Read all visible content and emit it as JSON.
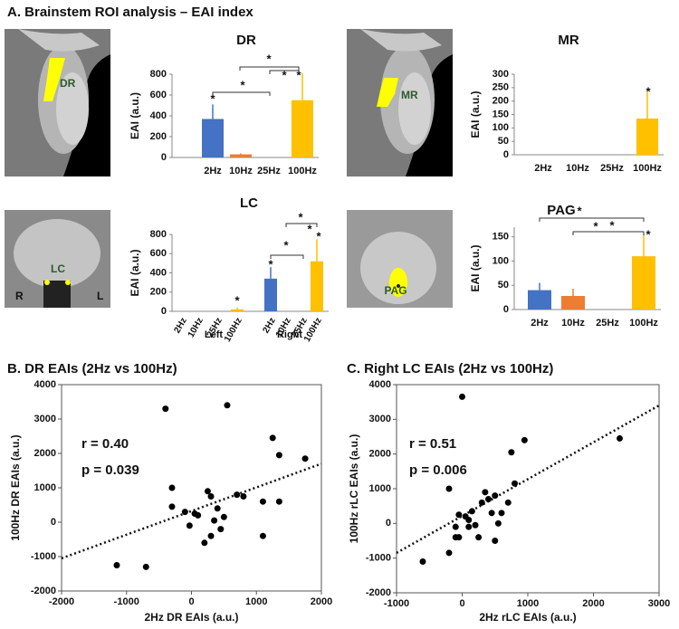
{
  "figure": {
    "panel_a_title": "A. Brainstem ROI analysis – EAI index",
    "image_labels": {
      "dr": "DR",
      "mr": "MR",
      "lc": "LC",
      "lc_right": "R",
      "lc_left": "L",
      "pag": "PAG"
    }
  },
  "chart_data": [
    {
      "type": "bar",
      "title": "DR",
      "y_label": "EAI (a.u.)",
      "categories": [
        "2Hz",
        "10Hz",
        "25Hz",
        "100Hz"
      ],
      "values": [
        370,
        30,
        0,
        550
      ],
      "errors": [
        140,
        10,
        0,
        260
      ],
      "colors": [
        "#4472c4",
        "#ed7d31",
        "#a5a5a5",
        "#ffc000"
      ],
      "ylim": [
        0,
        800
      ],
      "yticks": [
        0,
        200,
        400,
        600,
        800
      ],
      "annotations": [
        "*",
        "*",
        "*",
        "*",
        "*"
      ]
    },
    {
      "type": "bar",
      "title": "MR",
      "y_label": "EAI (a.u.)",
      "categories": [
        "2Hz",
        "10Hz",
        "25Hz",
        "100Hz"
      ],
      "values": [
        0,
        0,
        0,
        135
      ],
      "errors": [
        0,
        0,
        0,
        100
      ],
      "colors": [
        "#4472c4",
        "#ed7d31",
        "#a5a5a5",
        "#ffc000"
      ],
      "ylim": [
        0,
        300
      ],
      "yticks": [
        0,
        50,
        100,
        150,
        200,
        250,
        300
      ],
      "annotations": [
        "*"
      ]
    },
    {
      "type": "bar",
      "title": "LC",
      "y_label": "EAI (a.u.)",
      "categories": [
        "2Hz",
        "10Hz",
        "25Hz",
        "100Hz",
        "2Hz",
        "10Hz",
        "25Hz",
        "100Hz"
      ],
      "groups": [
        "Left",
        "Right"
      ],
      "values": [
        0,
        0,
        0,
        20,
        340,
        0,
        0,
        520
      ],
      "errors": [
        0,
        0,
        0,
        20,
        120,
        0,
        0,
        230
      ],
      "colors": [
        "#4472c4",
        "#ed7d31",
        "#a5a5a5",
        "#ffc000",
        "#4472c4",
        "#ed7d31",
        "#a5a5a5",
        "#ffc000"
      ],
      "ylim": [
        0,
        800
      ],
      "yticks": [
        0,
        200,
        400,
        600,
        800
      ],
      "annotations": [
        "*",
        "*",
        "*",
        "*",
        "*",
        "*"
      ]
    },
    {
      "type": "bar",
      "title": "PAG",
      "y_label": "EAI (a.u.)",
      "categories": [
        "2Hz",
        "10Hz",
        "25Hz",
        "100Hz"
      ],
      "values": [
        40,
        28,
        0,
        110
      ],
      "errors": [
        15,
        15,
        0,
        45
      ],
      "colors": [
        "#4472c4",
        "#ed7d31",
        "#a5a5a5",
        "#ffc000"
      ],
      "ylim": [
        0,
        170
      ],
      "yticks": [
        0,
        50,
        100,
        150
      ],
      "annotations": [
        "*",
        "*",
        "*",
        "*"
      ]
    },
    {
      "type": "scatter",
      "title": "B. DR EAIs (2Hz vs 100Hz)",
      "x_label": "2Hz DR EAIs (a.u.)",
      "y_label": "100Hz DR EAIs (a.u.)",
      "color": "#000000",
      "x": [
        -400,
        550,
        -300,
        -300,
        -100,
        50,
        250,
        300,
        100,
        -30,
        200,
        300,
        350,
        450,
        500,
        700,
        800,
        1100,
        1100,
        1250,
        1350,
        1350,
        1750,
        -1150,
        -700,
        400
      ],
      "y": [
        3300,
        3400,
        1000,
        450,
        300,
        250,
        900,
        750,
        200,
        -100,
        -600,
        -400,
        50,
        -200,
        150,
        800,
        750,
        600,
        -400,
        2450,
        1950,
        600,
        1850,
        -1250,
        -1300,
        400
      ],
      "xlim": [
        -2000,
        2000
      ],
      "xticks": [
        -2000,
        -1000,
        0,
        1000,
        2000
      ],
      "ylim": [
        -2000,
        4000
      ],
      "yticks": [
        -2000,
        -1000,
        0,
        1000,
        2000,
        3000,
        4000
      ],
      "trendline": {
        "x": [
          -2000,
          2000
        ],
        "y": [
          -1050,
          1700
        ]
      },
      "annotations": [
        "r = 0.40",
        "p = 0.039"
      ]
    },
    {
      "type": "scatter",
      "title": "C. Right LC EAIs (2Hz vs 100Hz)",
      "x_label": "2Hz rLC EAIs (a.u.)",
      "y_label": "100Hz rLC EAIs (a.u.)",
      "color": "#000000",
      "x": [
        -600,
        -200,
        -200,
        -100,
        -50,
        -50,
        0,
        50,
        100,
        150,
        200,
        250,
        300,
        350,
        400,
        450,
        500,
        500,
        550,
        600,
        700,
        750,
        800,
        950,
        2400,
        100,
        -100
      ],
      "y": [
        -1100,
        -850,
        1000,
        -100,
        250,
        -400,
        3650,
        200,
        100,
        350,
        -50,
        -400,
        600,
        900,
        700,
        300,
        -500,
        800,
        0,
        300,
        600,
        2050,
        1150,
        2400,
        2450,
        -100,
        -400
      ],
      "xlim": [
        -1000,
        3000
      ],
      "xticks": [
        -1000,
        0,
        1000,
        2000,
        3000
      ],
      "ylim": [
        -2000,
        4000
      ],
      "yticks": [
        -2000,
        -1000,
        0,
        1000,
        2000,
        3000,
        4000
      ],
      "trendline": {
        "x": [
          -1000,
          3000
        ],
        "y": [
          -850,
          3400
        ]
      },
      "annotations": [
        "r = 0.51",
        "p = 0.006"
      ]
    }
  ]
}
